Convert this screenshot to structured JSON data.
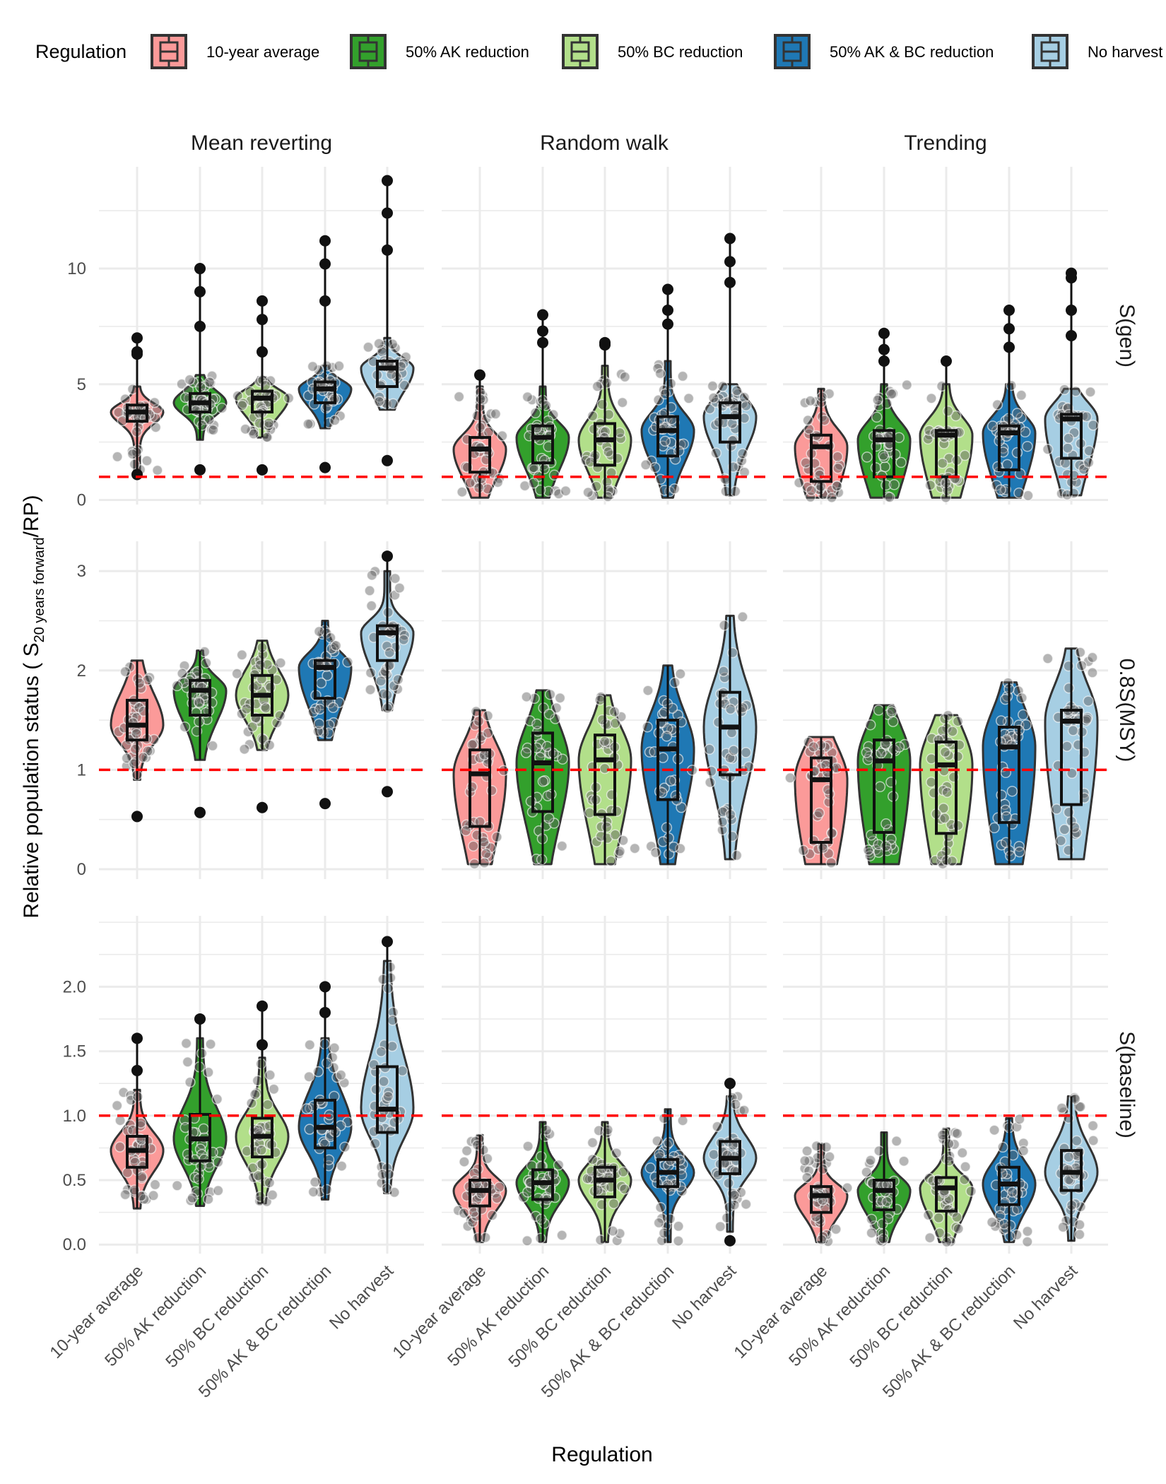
{
  "chart_data": {
    "type": "violin",
    "legend": {
      "title": "Regulation",
      "position": "top",
      "entries": [
        "10-year average",
        "50% AK reduction",
        "50% BC reduction",
        "50% AK & BC reduction",
        "No harvest"
      ]
    },
    "xlabel": "Regulation",
    "ylabel": {
      "main": "Relative population status ( S",
      "sub": "20 years forward",
      "tail": "/RP)"
    },
    "categories": [
      "10-year average",
      "50% AK reduction",
      "50% BC reduction",
      "50% AK & BC reduction",
      "No harvest"
    ],
    "columns": [
      "Mean reverting",
      "Random walk",
      "Trending"
    ],
    "rows": [
      "S(gen)",
      "0.8S(MSY)",
      "S(baseline)"
    ],
    "colors": [
      "#fb9a99",
      "#33a02c",
      "#b2df8a",
      "#1f78b4",
      "#a6cee3"
    ],
    "reference_line": {
      "value": 1,
      "color": "#ff0000",
      "style": "dashed"
    },
    "grid": true,
    "panels": [
      {
        "row": "S(gen)",
        "ylim": [
          -0.2,
          14.4
        ],
        "yticks": [
          0,
          5,
          10
        ],
        "columns": [
          {
            "name": "Mean reverting",
            "boxes": [
              {
                "min": 1.2,
                "q1": 3.4,
                "median": 3.8,
                "q3": 4.1,
                "max": 4.9,
                "outliers": [
                  6.3,
                  6.4,
                  7.0,
                  1.1
                ]
              },
              {
                "min": 2.6,
                "q1": 3.8,
                "median": 4.2,
                "q3": 4.6,
                "max": 5.4,
                "outliers": [
                  9.0,
                  10.0,
                  7.5,
                  1.3
                ]
              },
              {
                "min": 2.7,
                "q1": 3.8,
                "median": 4.4,
                "q3": 4.7,
                "max": 5.3,
                "outliers": [
                  7.8,
                  8.6,
                  6.4,
                  1.3
                ]
              },
              {
                "min": 3.1,
                "q1": 4.2,
                "median": 4.8,
                "q3": 5.1,
                "max": 5.8,
                "outliers": [
                  10.2,
                  11.2,
                  8.6,
                  1.4
                ]
              },
              {
                "min": 3.9,
                "q1": 4.9,
                "median": 5.7,
                "q3": 6.0,
                "max": 7.0,
                "outliers": [
                  12.4,
                  13.8,
                  10.8,
                  1.7
                ]
              }
            ]
          },
          {
            "name": "Random walk",
            "boxes": [
              {
                "min": 0.1,
                "q1": 1.2,
                "median": 2.2,
                "q3": 2.7,
                "max": 4.9,
                "outliers": [
                  5.4
                ]
              },
              {
                "min": 0.1,
                "q1": 1.6,
                "median": 2.7,
                "q3": 3.2,
                "max": 4.9,
                "outliers": [
                  6.8,
                  7.3,
                  8.0
                ]
              },
              {
                "min": 0.1,
                "q1": 1.5,
                "median": 2.6,
                "q3": 3.3,
                "max": 5.8,
                "outliers": [
                  6.7,
                  6.8
                ]
              },
              {
                "min": 0.1,
                "q1": 1.9,
                "median": 3.0,
                "q3": 3.6,
                "max": 6.0,
                "outliers": [
                  7.6,
                  8.2,
                  9.1
                ]
              },
              {
                "min": 0.2,
                "q1": 2.5,
                "median": 3.6,
                "q3": 4.2,
                "max": 5.0,
                "outliers": [
                  9.4,
                  10.3,
                  11.3
                ]
              }
            ]
          },
          {
            "name": "Trending",
            "boxes": [
              {
                "min": 0.1,
                "q1": 0.8,
                "median": 2.3,
                "q3": 2.8,
                "max": 4.8,
                "outliers": []
              },
              {
                "min": 0.1,
                "q1": 1.0,
                "median": 2.6,
                "q3": 3.0,
                "max": 5.0,
                "outliers": [
                  6.0,
                  6.5,
                  7.2
                ]
              },
              {
                "min": 0.1,
                "q1": 1.0,
                "median": 2.8,
                "q3": 3.0,
                "max": 5.0,
                "outliers": [
                  6.0
                ]
              },
              {
                "min": 0.1,
                "q1": 1.3,
                "median": 2.9,
                "q3": 3.2,
                "max": 5.0,
                "outliers": [
                  6.6,
                  7.4,
                  8.2
                ]
              },
              {
                "min": 0.2,
                "q1": 1.8,
                "median": 3.5,
                "q3": 3.7,
                "max": 4.8,
                "outliers": [
                  7.1,
                  8.2,
                  9.6,
                  9.8
                ]
              }
            ]
          }
        ]
      },
      {
        "row": "0.8S(MSY)",
        "ylim": [
          -0.1,
          3.3
        ],
        "yticks": [
          0,
          1,
          2,
          3
        ],
        "columns": [
          {
            "name": "Mean reverting",
            "boxes": [
              {
                "min": 0.9,
                "q1": 1.3,
                "median": 1.45,
                "q3": 1.7,
                "max": 2.1,
                "outliers": [
                  0.53
                ]
              },
              {
                "min": 1.1,
                "q1": 1.55,
                "median": 1.8,
                "q3": 1.9,
                "max": 2.2,
                "outliers": [
                  0.57
                ]
              },
              {
                "min": 1.2,
                "q1": 1.55,
                "median": 1.75,
                "q3": 1.95,
                "max": 2.3,
                "outliers": [
                  0.62
                ]
              },
              {
                "min": 1.3,
                "q1": 1.72,
                "median": 2.03,
                "q3": 2.1,
                "max": 2.5,
                "outliers": [
                  0.66
                ]
              },
              {
                "min": 1.6,
                "q1": 2.1,
                "median": 2.38,
                "q3": 2.45,
                "max": 3.0,
                "outliers": [
                  3.15,
                  0.78
                ]
              }
            ]
          },
          {
            "name": "Random walk",
            "boxes": [
              {
                "min": 0.05,
                "q1": 0.43,
                "median": 0.96,
                "q3": 1.2,
                "max": 1.6,
                "outliers": []
              },
              {
                "min": 0.05,
                "q1": 0.58,
                "median": 1.07,
                "q3": 1.37,
                "max": 1.8,
                "outliers": []
              },
              {
                "min": 0.05,
                "q1": 0.55,
                "median": 1.1,
                "q3": 1.35,
                "max": 1.75,
                "outliers": []
              },
              {
                "min": 0.05,
                "q1": 0.7,
                "median": 1.21,
                "q3": 1.5,
                "max": 2.05,
                "outliers": []
              },
              {
                "min": 0.1,
                "q1": 0.95,
                "median": 1.43,
                "q3": 1.78,
                "max": 2.55,
                "outliers": []
              }
            ]
          },
          {
            "name": "Trending",
            "boxes": [
              {
                "min": 0.05,
                "q1": 0.27,
                "median": 0.9,
                "q3": 1.12,
                "max": 1.33,
                "outliers": []
              },
              {
                "min": 0.05,
                "q1": 0.37,
                "median": 1.09,
                "q3": 1.3,
                "max": 1.65,
                "outliers": []
              },
              {
                "min": 0.05,
                "q1": 0.36,
                "median": 1.05,
                "q3": 1.28,
                "max": 1.55,
                "outliers": []
              },
              {
                "min": 0.05,
                "q1": 0.47,
                "median": 1.23,
                "q3": 1.43,
                "max": 1.88,
                "outliers": []
              },
              {
                "min": 0.1,
                "q1": 0.65,
                "median": 1.49,
                "q3": 1.6,
                "max": 2.22,
                "outliers": []
              }
            ]
          }
        ]
      },
      {
        "row": "S(baseline)",
        "ylim": [
          -0.07,
          2.55
        ],
        "yticks": [
          0.0,
          0.5,
          1.0,
          1.5,
          2.0
        ],
        "columns": [
          {
            "name": "Mean reverting",
            "boxes": [
              {
                "min": 0.28,
                "q1": 0.6,
                "median": 0.73,
                "q3": 0.84,
                "max": 1.2,
                "outliers": [
                  1.35,
                  1.6
                ]
              },
              {
                "min": 0.3,
                "q1": 0.65,
                "median": 0.82,
                "q3": 1.01,
                "max": 1.6,
                "outliers": [
                  1.75
                ]
              },
              {
                "min": 0.32,
                "q1": 0.68,
                "median": 0.84,
                "q3": 0.98,
                "max": 1.45,
                "outliers": [
                  1.55,
                  1.85
                ]
              },
              {
                "min": 0.35,
                "q1": 0.75,
                "median": 0.91,
                "q3": 1.12,
                "max": 1.6,
                "outliers": [
                  1.8,
                  2.0
                ]
              },
              {
                "min": 0.4,
                "q1": 0.87,
                "median": 1.05,
                "q3": 1.38,
                "max": 2.2,
                "outliers": [
                  2.35
                ]
              }
            ]
          },
          {
            "name": "Random walk",
            "boxes": [
              {
                "min": 0.02,
                "q1": 0.3,
                "median": 0.42,
                "q3": 0.5,
                "max": 0.85,
                "outliers": []
              },
              {
                "min": 0.02,
                "q1": 0.35,
                "median": 0.48,
                "q3": 0.58,
                "max": 0.95,
                "outliers": []
              },
              {
                "min": 0.02,
                "q1": 0.37,
                "median": 0.5,
                "q3": 0.6,
                "max": 0.95,
                "outliers": []
              },
              {
                "min": 0.02,
                "q1": 0.45,
                "median": 0.56,
                "q3": 0.66,
                "max": 1.05,
                "outliers": []
              },
              {
                "min": 0.1,
                "q1": 0.55,
                "median": 0.67,
                "q3": 0.8,
                "max": 1.15,
                "outliers": [
                  1.25,
                  0.03
                ]
              }
            ]
          },
          {
            "name": "Trending",
            "boxes": [
              {
                "min": 0.02,
                "q1": 0.25,
                "median": 0.38,
                "q3": 0.45,
                "max": 0.78,
                "outliers": []
              },
              {
                "min": 0.02,
                "q1": 0.27,
                "median": 0.42,
                "q3": 0.5,
                "max": 0.87,
                "outliers": []
              },
              {
                "min": 0.02,
                "q1": 0.26,
                "median": 0.44,
                "q3": 0.52,
                "max": 0.9,
                "outliers": []
              },
              {
                "min": 0.02,
                "q1": 0.31,
                "median": 0.47,
                "q3": 0.6,
                "max": 0.98,
                "outliers": []
              },
              {
                "min": 0.03,
                "q1": 0.42,
                "median": 0.56,
                "q3": 0.73,
                "max": 1.15,
                "outliers": []
              }
            ]
          }
        ]
      }
    ]
  }
}
